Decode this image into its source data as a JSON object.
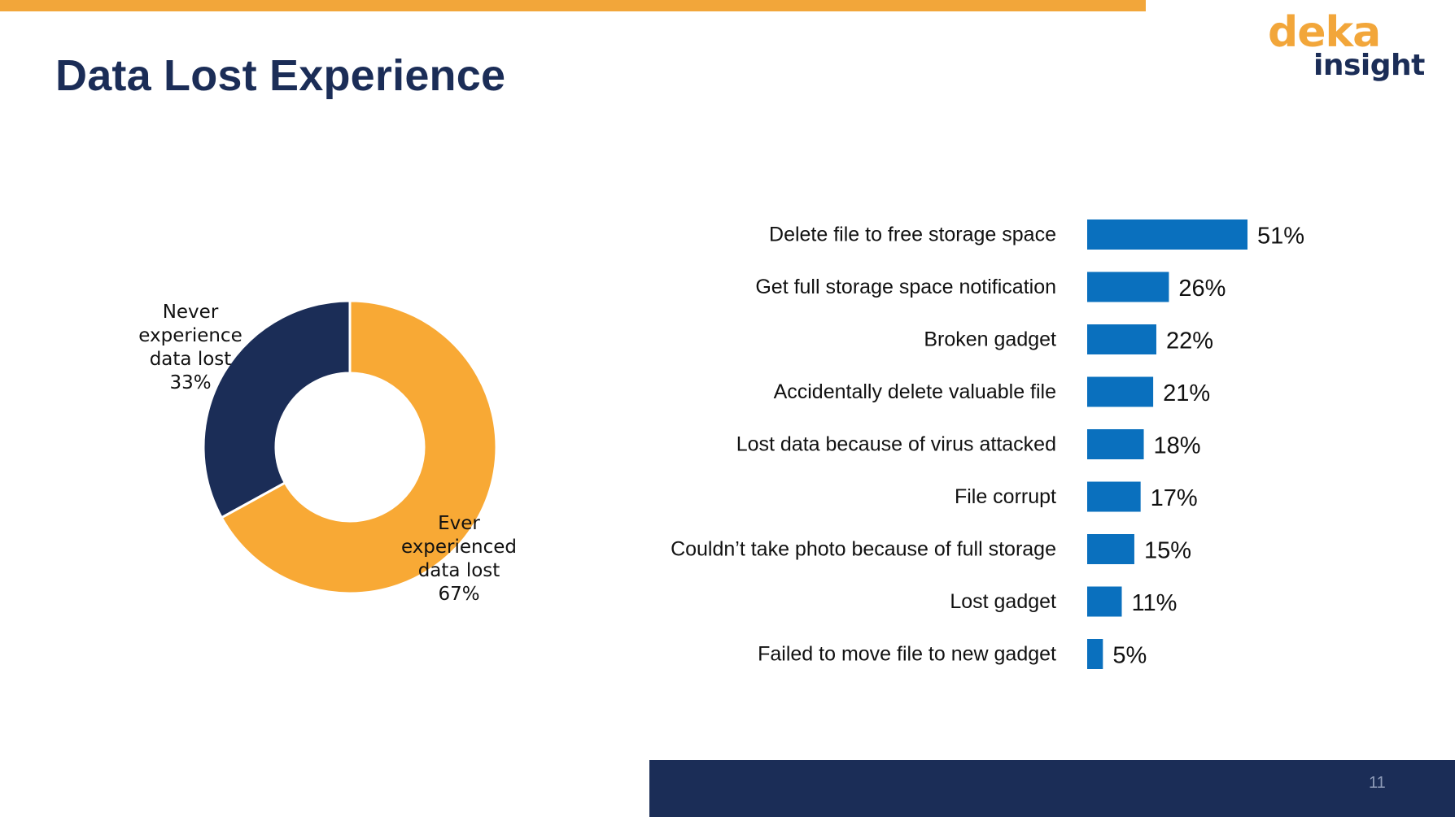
{
  "slide": {
    "title": "Data Lost Experience",
    "page_number": "11"
  },
  "logo": {
    "line1": "deka",
    "line2": "insight"
  },
  "colors": {
    "accent_orange": "#F2A63A",
    "navy": "#1B2D57",
    "bar_blue": "#0A70BE",
    "donut_orange": "#F8A935",
    "donut_navy": "#1B2D57"
  },
  "chart_data": [
    {
      "type": "pie",
      "variant": "donut",
      "slices": [
        {
          "label_lines": [
            "Ever",
            "experienced",
            "data lost"
          ],
          "value_text": "67%",
          "value": 67,
          "color": "#F8A935"
        },
        {
          "label_lines": [
            "Never",
            "experience",
            "data lost"
          ],
          "value_text": "33%",
          "value": 33,
          "color": "#1B2D57"
        }
      ]
    },
    {
      "type": "bar",
      "orientation": "horizontal",
      "categories": [
        "Delete file to free storage space",
        "Get full storage space notification",
        "Broken gadget",
        "Accidentally delete valuable file",
        "Lost data because of virus attacked",
        "File corrupt",
        "Couldn’t take photo because of full storage",
        "Lost gadget",
        "Failed to move file to new gadget"
      ],
      "values": [
        51,
        26,
        22,
        21,
        18,
        17,
        15,
        11,
        5
      ],
      "value_labels": [
        "51%",
        "26%",
        "22%",
        "21%",
        "18%",
        "17%",
        "15%",
        "11%",
        "5%"
      ],
      "color": "#0A70BE",
      "grid": false,
      "xlim": [
        0,
        51
      ]
    }
  ]
}
